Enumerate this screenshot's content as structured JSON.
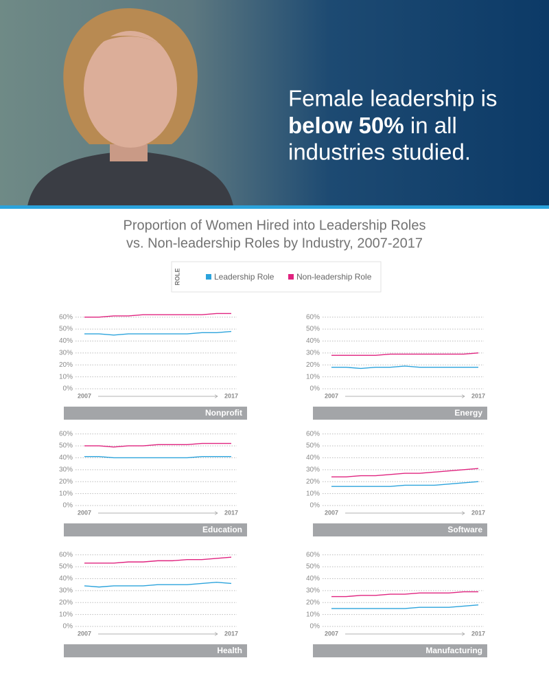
{
  "banner": {
    "line1": "Female leadership is",
    "line2_bold": "below 50%",
    "line2_rest": "in all",
    "line3": "industries studied."
  },
  "title_line1": "Proportion of Women Hired into Leadership Roles",
  "title_line2": "vs. Non-leadership Roles by Industry, 2007-2017",
  "legend": {
    "title": "ROLE",
    "entries": [
      {
        "name": "Leadership Role",
        "color": "#2ba3dc"
      },
      {
        "name": "Non-leadership Role",
        "color": "#e0237f"
      }
    ]
  },
  "chart_data": [
    {
      "type": "line",
      "title": "Nonprofit",
      "categories": [
        "2007",
        null,
        null,
        null,
        null,
        null,
        null,
        null,
        null,
        null,
        "2017"
      ],
      "ylim": [
        0,
        65
      ],
      "yticks": [
        {
          "value": 0,
          "label": "0%"
        },
        {
          "value": 10,
          "label": "10%"
        },
        {
          "value": 20,
          "label": "20%"
        },
        {
          "value": 30,
          "label": "30%"
        },
        {
          "value": 40,
          "label": "40%"
        },
        {
          "value": 50,
          "label": "50%"
        },
        {
          "value": 60,
          "label": "60%"
        }
      ],
      "series": [
        {
          "values": [
            46,
            46,
            45,
            46,
            46,
            46,
            46,
            46,
            47,
            47,
            48
          ]
        },
        {
          "values": [
            60,
            60,
            61,
            61,
            62,
            62,
            62,
            62,
            62,
            63,
            63
          ]
        }
      ]
    },
    {
      "type": "line",
      "title": "Energy",
      "categories": [
        "2007",
        null,
        null,
        null,
        null,
        null,
        null,
        null,
        null,
        null,
        "2017"
      ],
      "ylim": [
        0,
        65
      ],
      "yticks": [
        {
          "value": 0,
          "label": "0%"
        },
        {
          "value": 10,
          "label": "10%"
        },
        {
          "value": 20,
          "label": "20%"
        },
        {
          "value": 30,
          "label": "30%"
        },
        {
          "value": 40,
          "label": "40%"
        },
        {
          "value": 50,
          "label": "50%"
        },
        {
          "value": 60,
          "label": "60%"
        }
      ],
      "series": [
        {
          "values": [
            18,
            18,
            17,
            18,
            18,
            19,
            18,
            18,
            18,
            18,
            18
          ]
        },
        {
          "values": [
            28,
            28,
            28,
            28,
            29,
            29,
            29,
            29,
            29,
            29,
            30
          ]
        }
      ]
    },
    {
      "type": "line",
      "title": "Education",
      "categories": [
        "2007",
        null,
        null,
        null,
        null,
        null,
        null,
        null,
        null,
        null,
        "2017"
      ],
      "ylim": [
        0,
        65
      ],
      "yticks": [
        {
          "value": 0,
          "label": "0%"
        },
        {
          "value": 10,
          "label": "10%"
        },
        {
          "value": 20,
          "label": "20%"
        },
        {
          "value": 30,
          "label": "30%"
        },
        {
          "value": 40,
          "label": "40%"
        },
        {
          "value": 50,
          "label": "50%"
        },
        {
          "value": 60,
          "label": "60%"
        }
      ],
      "series": [
        {
          "values": [
            41,
            41,
            40,
            40,
            40,
            40,
            40,
            40,
            41,
            41,
            41
          ]
        },
        {
          "values": [
            50,
            50,
            49,
            50,
            50,
            51,
            51,
            51,
            52,
            52,
            52
          ]
        }
      ]
    },
    {
      "type": "line",
      "title": "Software",
      "categories": [
        "2007",
        null,
        null,
        null,
        null,
        null,
        null,
        null,
        null,
        null,
        "2017"
      ],
      "ylim": [
        0,
        65
      ],
      "yticks": [
        {
          "value": 0,
          "label": "0%"
        },
        {
          "value": 10,
          "label": "10%"
        },
        {
          "value": 20,
          "label": "20%"
        },
        {
          "value": 30,
          "label": "30%"
        },
        {
          "value": 40,
          "label": "40%"
        },
        {
          "value": 50,
          "label": "50%"
        },
        {
          "value": 60,
          "label": "60%"
        }
      ],
      "series": [
        {
          "values": [
            16,
            16,
            16,
            16,
            16,
            17,
            17,
            17,
            18,
            19,
            20
          ]
        },
        {
          "values": [
            24,
            24,
            25,
            25,
            26,
            27,
            27,
            28,
            29,
            30,
            31
          ]
        }
      ]
    },
    {
      "type": "line",
      "title": "Health",
      "categories": [
        "2007",
        null,
        null,
        null,
        null,
        null,
        null,
        null,
        null,
        null,
        "2017"
      ],
      "ylim": [
        0,
        65
      ],
      "yticks": [
        {
          "value": 0,
          "label": "0%"
        },
        {
          "value": 10,
          "label": "10%"
        },
        {
          "value": 20,
          "label": "20%"
        },
        {
          "value": 30,
          "label": "30%"
        },
        {
          "value": 40,
          "label": "40%"
        },
        {
          "value": 50,
          "label": "50%"
        },
        {
          "value": 60,
          "label": "60%"
        }
      ],
      "series": [
        {
          "values": [
            34,
            33,
            34,
            34,
            34,
            35,
            35,
            35,
            36,
            37,
            36
          ]
        },
        {
          "values": [
            53,
            53,
            53,
            54,
            54,
            55,
            55,
            56,
            56,
            57,
            58
          ]
        }
      ]
    },
    {
      "type": "line",
      "title": "Manufacturing",
      "categories": [
        "2007",
        null,
        null,
        null,
        null,
        null,
        null,
        null,
        null,
        null,
        "2017"
      ],
      "ylim": [
        0,
        65
      ],
      "yticks": [
        {
          "value": 0,
          "label": "0%"
        },
        {
          "value": 10,
          "label": "10%"
        },
        {
          "value": 20,
          "label": "20%"
        },
        {
          "value": 30,
          "label": "30%"
        },
        {
          "value": 40,
          "label": "40%"
        },
        {
          "value": 50,
          "label": "50%"
        },
        {
          "value": 60,
          "label": "60%"
        }
      ],
      "series": [
        {
          "values": [
            15,
            15,
            15,
            15,
            15,
            15,
            16,
            16,
            16,
            17,
            18
          ]
        },
        {
          "values": [
            25,
            25,
            26,
            26,
            27,
            27,
            28,
            28,
            28,
            29,
            29
          ]
        }
      ]
    }
  ]
}
